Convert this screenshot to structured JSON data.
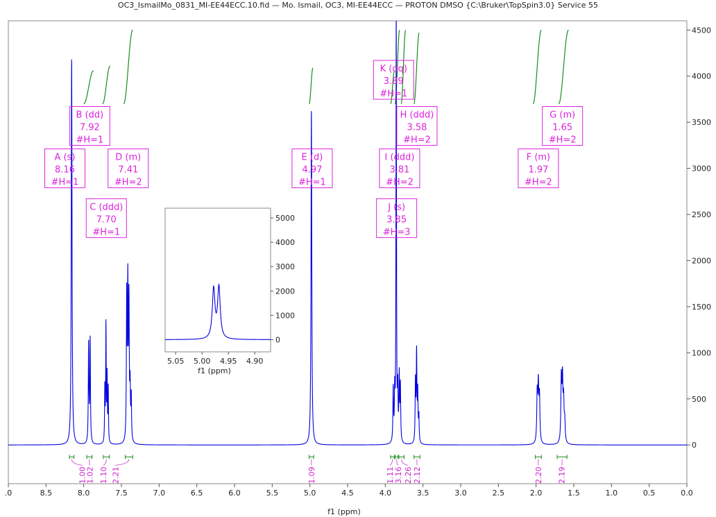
{
  "chart_data": {
    "type": "line",
    "title": "OC3_IsmailMo_0831_MI-EE44ECC.10.fid — Mo. Ismail, OC3, MI-EE44ECC  — PROTON DMSO {C:\\Bruker\\TopSpin3.0} Service 55",
    "xlabel": "f1 (ppm)",
    "xlim": [
      9.0,
      0.0
    ],
    "ylim": [
      -420,
      4600
    ],
    "x_ticks": [
      ".0",
      "8.5",
      "8.0",
      "7.5",
      "7.0",
      "6.5",
      "6.0",
      "5.5",
      "5.0",
      "4.5",
      "4.0",
      "3.5",
      "3.0",
      "2.5",
      "2.0",
      "1.5",
      "1.0",
      "0.5",
      "0.0"
    ],
    "x_tick_values": [
      9.0,
      8.5,
      8.0,
      7.5,
      7.0,
      6.5,
      6.0,
      5.5,
      5.0,
      4.5,
      4.0,
      3.5,
      3.0,
      2.5,
      2.0,
      1.5,
      1.0,
      0.5,
      0.0
    ],
    "y_ticks": [
      4500,
      4000,
      3500,
      3000,
      2500,
      2000,
      1500,
      1000,
      500,
      0
    ],
    "y_tick_labels": [
      "4500",
      "4000",
      "3500",
      "3000",
      "2500",
      "2000",
      "1500",
      "1000",
      "500",
      "0"
    ],
    "series_color": "#0000e0",
    "peaks": [
      {
        "ppm": 8.16,
        "height": 4200,
        "width": 0.006
      },
      {
        "ppm": 7.935,
        "height": 1080,
        "width": 0.005
      },
      {
        "ppm": 7.915,
        "height": 1120,
        "width": 0.005
      },
      {
        "ppm": 7.72,
        "height": 590,
        "width": 0.004
      },
      {
        "ppm": 7.705,
        "height": 1270,
        "width": 0.004
      },
      {
        "ppm": 7.69,
        "height": 700,
        "width": 0.004
      },
      {
        "ppm": 7.675,
        "height": 600,
        "width": 0.004
      },
      {
        "ppm": 7.43,
        "height": 1550,
        "width": 0.005
      },
      {
        "ppm": 7.415,
        "height": 1650,
        "width": 0.005
      },
      {
        "ppm": 7.4,
        "height": 1480,
        "width": 0.005
      },
      {
        "ppm": 7.385,
        "height": 550,
        "width": 0.005
      },
      {
        "ppm": 7.37,
        "height": 480,
        "width": 0.005
      },
      {
        "ppm": 4.98,
        "height": 3640,
        "width": 0.006
      },
      {
        "ppm": 3.895,
        "height": 580,
        "width": 0.005
      },
      {
        "ppm": 3.875,
        "height": 520,
        "width": 0.005
      },
      {
        "ppm": 3.855,
        "height": 4700,
        "width": 0.004
      },
      {
        "ppm": 3.835,
        "height": 520,
        "width": 0.005
      },
      {
        "ppm": 3.815,
        "height": 700,
        "width": 0.005
      },
      {
        "ppm": 3.8,
        "height": 600,
        "width": 0.005
      },
      {
        "ppm": 3.6,
        "height": 650,
        "width": 0.005
      },
      {
        "ppm": 3.585,
        "height": 960,
        "width": 0.005
      },
      {
        "ppm": 3.57,
        "height": 520,
        "width": 0.005
      },
      {
        "ppm": 3.555,
        "height": 280,
        "width": 0.005
      },
      {
        "ppm": 1.985,
        "height": 520,
        "width": 0.007
      },
      {
        "ppm": 1.97,
        "height": 590,
        "width": 0.007
      },
      {
        "ppm": 1.955,
        "height": 480,
        "width": 0.007
      },
      {
        "ppm": 1.665,
        "height": 680,
        "width": 0.007
      },
      {
        "ppm": 1.65,
        "height": 640,
        "width": 0.007
      },
      {
        "ppm": 1.635,
        "height": 430,
        "width": 0.007
      },
      {
        "ppm": 1.62,
        "height": 220,
        "width": 0.007
      }
    ],
    "integral_curves": [
      {
        "x0": 8.0,
        "x1": 7.87,
        "y0": 3700,
        "y1": 4060
      },
      {
        "x0": 7.75,
        "x1": 7.65,
        "y0": 3700,
        "y1": 4110
      },
      {
        "x0": 7.47,
        "x1": 7.35,
        "y0": 3700,
        "y1": 4500
      },
      {
        "x0": 5.01,
        "x1": 4.96,
        "y0": 3700,
        "y1": 4090
      },
      {
        "x0": 3.93,
        "x1": 3.88,
        "y0": 3700,
        "y1": 4050
      },
      {
        "x0": 3.87,
        "x1": 3.81,
        "y0": 3700,
        "y1": 4500
      },
      {
        "x0": 3.79,
        "x1": 3.73,
        "y0": 3700,
        "y1": 4500
      },
      {
        "x0": 3.62,
        "x1": 3.55,
        "y0": 3700,
        "y1": 4470
      },
      {
        "x0": 2.04,
        "x1": 1.93,
        "y0": 3700,
        "y1": 4500
      },
      {
        "x0": 1.7,
        "x1": 1.57,
        "y0": 3700,
        "y1": 4500
      }
    ],
    "integrals": [
      {
        "label": "1.00",
        "from": 8.19,
        "to": 8.13,
        "text_ppm": 8.02
      },
      {
        "label": "1.02",
        "from": 7.96,
        "to": 7.89,
        "text_ppm": 7.92
      },
      {
        "label": "1.10",
        "from": 7.74,
        "to": 7.66,
        "text_ppm": 7.74
      },
      {
        "label": "2.21",
        "from": 7.45,
        "to": 7.35,
        "text_ppm": 7.58
      },
      {
        "label": "1.09",
        "from": 5.01,
        "to": 4.95,
        "text_ppm": 4.98
      },
      {
        "label": "1.11",
        "from": 3.93,
        "to": 3.88,
        "text_ppm": 3.94
      },
      {
        "label": "3.16",
        "from": 3.87,
        "to": 3.83,
        "text_ppm": 3.83
      },
      {
        "label": "2.26",
        "from": 3.82,
        "to": 3.75,
        "text_ppm": 3.7
      },
      {
        "label": "2.12",
        "from": 3.62,
        "to": 3.54,
        "text_ppm": 3.58
      },
      {
        "label": "2.20",
        "from": 2.01,
        "to": 1.93,
        "text_ppm": 1.97
      },
      {
        "label": "2.19",
        "from": 1.72,
        "to": 1.59,
        "text_ppm": 1.66
      }
    ],
    "annotations": [
      {
        "name": "A (s)",
        "shift": "8.16",
        "nh": "#H=1",
        "ppm": 8.25,
        "y": 3000
      },
      {
        "name": "B (dd)",
        "shift": "7.92",
        "nh": "#H=1",
        "ppm": 7.92,
        "y": 3460
      },
      {
        "name": "C (ddd)",
        "shift": "7.70",
        "nh": "#H=1",
        "ppm": 7.7,
        "y": 2460
      },
      {
        "name": "D (m)",
        "shift": "7.41",
        "nh": "#H=2",
        "ppm": 7.41,
        "y": 3000
      },
      {
        "name": "E (d)",
        "shift": "4.97",
        "nh": "#H=1",
        "ppm": 4.97,
        "y": 3000
      },
      {
        "name": "F (m)",
        "shift": "1.97",
        "nh": "#H=2",
        "ppm": 1.97,
        "y": 3000
      },
      {
        "name": "G (m)",
        "shift": "1.65",
        "nh": "#H=2",
        "ppm": 1.65,
        "y": 3460
      },
      {
        "name": "H (ddd)",
        "shift": "3.58",
        "nh": "#H=2",
        "ppm": 3.58,
        "y": 3460
      },
      {
        "name": "I (ddd)",
        "shift": "3.81",
        "nh": "#H=2",
        "ppm": 3.81,
        "y": 3000
      },
      {
        "name": "J (s)",
        "shift": "3.85",
        "nh": "#H=3",
        "ppm": 3.85,
        "y": 2460
      },
      {
        "name": "K (dq)",
        "shift": "3.89",
        "nh": "#H=1",
        "ppm": 3.89,
        "y": 3960
      }
    ],
    "inset": {
      "xlabel": "f1 (ppm)",
      "xlim": [
        5.07,
        4.87
      ],
      "ylim": [
        -500,
        5400
      ],
      "x_ticks": [
        "5.05",
        "5.00",
        "4.95",
        "4.90"
      ],
      "x_tick_values": [
        5.05,
        5.0,
        4.95,
        4.9
      ],
      "y_ticks": [
        "5000",
        "4000",
        "3000",
        "2000",
        "1000",
        "0"
      ],
      "y_tick_values": [
        5000,
        4000,
        3000,
        2000,
        1000,
        0
      ],
      "peaks": [
        {
          "ppm": 4.978,
          "height": 2030,
          "width": 0.003
        },
        {
          "ppm": 4.968,
          "height": 2100,
          "width": 0.003
        }
      ]
    }
  }
}
